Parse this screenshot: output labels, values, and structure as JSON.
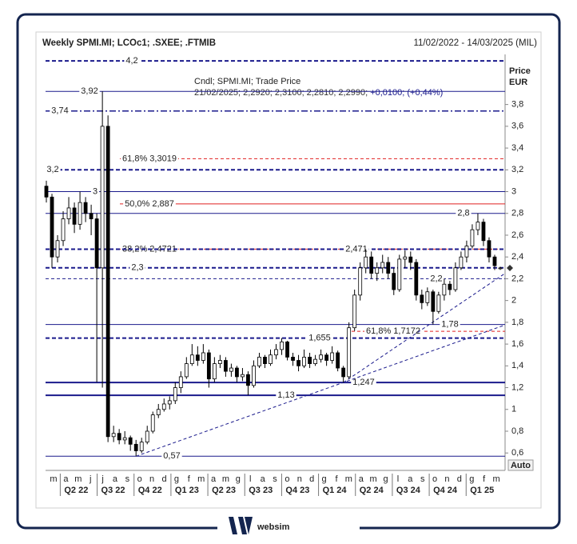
{
  "chart_data": {
    "type": "candlestick",
    "title": "Weekly SPMI.MI; LCOc1; .SXEE; .FTMIB",
    "subtitle": "11/02/2022 - 14/03/2025 (MIL)",
    "y_label_top": "Price",
    "y_label_bottom": "EUR",
    "legend_title": "Cndl; SPMI.MI; Trade Price",
    "legend_values": "21/02/2025; 2,2920; 2,3100; 2,2810; 2,2990;",
    "legend_change": "+0,0100; (+0,44%)",
    "auto_button": "Auto",
    "up_color": "#ffffff",
    "down_color": "#000000",
    "ylim": [
      0.44,
      4.26
    ],
    "yticks": [
      {
        "value": 0.6,
        "label": "0,6"
      },
      {
        "value": 0.8,
        "label": "0,8"
      },
      1,
      {
        "value": 1.2,
        "label": "1,2"
      },
      {
        "value": 1.4,
        "label": "1,4"
      },
      {
        "value": 1.6,
        "label": "1,6"
      },
      {
        "value": 1.8,
        "label": "1,8"
      },
      2,
      {
        "value": 2.2,
        "label": "2,2"
      },
      {
        "value": 2.4,
        "label": "2,4"
      },
      {
        "value": 2.6,
        "label": "2,6"
      },
      {
        "value": 2.8,
        "label": "2,8"
      },
      3,
      {
        "value": 3.2,
        "label": "3,2"
      },
      {
        "value": 3.4,
        "label": "3,4"
      },
      {
        "value": 3.6,
        "label": "3,6"
      },
      {
        "value": 3.8,
        "label": "3,8"
      }
    ],
    "months": [
      "m",
      "a",
      "m",
      "j",
      "j",
      "a",
      "s",
      "o",
      "n",
      "d",
      "g",
      "f",
      "m",
      "a",
      "m",
      "g",
      "l",
      "a",
      "s",
      "o",
      "n",
      "d",
      "g",
      "f",
      "m",
      "a",
      "m",
      "g",
      "l",
      "a",
      "s",
      "o",
      "n",
      "d",
      "g",
      "f",
      "m"
    ],
    "quarters": [
      "Q2 22",
      "Q3 22",
      "Q4 22",
      "Q1 23",
      "Q2 23",
      "Q3 23",
      "Q4 23",
      "Q1 24",
      "Q2 24",
      "Q3 24",
      "Q4 24",
      "Q1 25"
    ],
    "open": [
      3.05,
      2.95,
      2.4,
      2.55,
      2.75,
      2.85,
      2.7,
      2.9,
      2.8,
      2.75,
      2.3,
      3.6,
      0.75,
      0.78,
      0.72,
      0.74,
      0.68,
      0.62,
      0.7,
      0.8,
      0.95,
      1.0,
      1.05,
      1.08,
      1.2,
      1.3,
      1.42,
      1.5,
      1.45,
      1.52,
      1.28,
      1.42,
      1.45,
      1.35,
      1.38,
      1.3,
      1.32,
      1.22,
      1.4,
      1.48,
      1.42,
      1.5,
      1.55,
      1.62,
      1.48,
      1.45,
      1.4,
      1.48,
      1.42,
      1.46,
      1.5,
      1.45,
      1.52,
      1.38,
      1.3,
      1.75,
      2.05,
      2.3,
      2.4,
      2.25,
      2.3,
      2.35,
      2.25,
      2.1,
      2.38,
      2.4,
      2.35,
      2.05,
      1.98,
      2.08,
      1.9,
      2.05,
      2.15,
      2.1,
      2.3,
      2.4,
      2.5,
      2.65,
      2.72,
      2.55,
      2.4,
      2.292
    ],
    "high": [
      3.1,
      2.98,
      2.6,
      2.82,
      2.95,
      2.9,
      3.0,
      2.95,
      2.88,
      2.8,
      3.92,
      3.7,
      0.85,
      0.82,
      0.8,
      0.76,
      0.72,
      0.74,
      0.85,
      0.98,
      1.05,
      1.1,
      1.12,
      1.25,
      1.35,
      1.48,
      1.6,
      1.58,
      1.6,
      1.55,
      1.48,
      1.5,
      1.48,
      1.42,
      1.4,
      1.38,
      1.35,
      1.45,
      1.52,
      1.5,
      1.55,
      1.6,
      1.655,
      1.63,
      1.52,
      1.5,
      1.55,
      1.52,
      1.5,
      1.55,
      1.52,
      1.58,
      1.54,
      1.4,
      1.8,
      2.1,
      2.35,
      2.471,
      2.45,
      2.35,
      2.42,
      2.4,
      2.3,
      2.42,
      2.46,
      2.45,
      2.38,
      2.1,
      2.12,
      2.1,
      2.08,
      2.2,
      2.18,
      2.35,
      2.45,
      2.55,
      2.7,
      2.8,
      2.75,
      2.58,
      2.42,
      2.31
    ],
    "low": [
      2.9,
      2.3,
      2.35,
      2.5,
      2.7,
      2.62,
      2.65,
      2.72,
      2.6,
      1.25,
      1.2,
      0.7,
      0.7,
      0.68,
      0.68,
      0.62,
      0.57,
      0.6,
      0.68,
      0.78,
      0.92,
      0.98,
      1.0,
      1.05,
      1.15,
      1.28,
      1.4,
      1.4,
      1.42,
      1.2,
      1.25,
      1.38,
      1.3,
      1.3,
      1.25,
      1.26,
      1.13,
      1.2,
      1.38,
      1.38,
      1.4,
      1.46,
      1.5,
      1.45,
      1.4,
      1.35,
      1.38,
      1.38,
      1.4,
      1.43,
      1.4,
      1.42,
      1.35,
      1.247,
      1.28,
      1.72,
      2.0,
      2.25,
      2.2,
      2.18,
      2.25,
      2.2,
      2.05,
      2.08,
      2.3,
      2.28,
      2.0,
      1.92,
      1.95,
      1.78,
      1.88,
      2.0,
      2.05,
      2.08,
      2.28,
      2.35,
      2.48,
      2.6,
      2.5,
      2.35,
      2.28,
      2.281
    ],
    "close": [
      2.95,
      2.4,
      2.55,
      2.75,
      2.85,
      2.7,
      2.9,
      2.8,
      2.75,
      2.3,
      3.6,
      0.75,
      0.78,
      0.72,
      0.74,
      0.68,
      0.62,
      0.7,
      0.8,
      0.95,
      1.0,
      1.05,
      1.08,
      1.2,
      1.3,
      1.42,
      1.5,
      1.45,
      1.52,
      1.28,
      1.42,
      1.45,
      1.35,
      1.38,
      1.3,
      1.32,
      1.22,
      1.4,
      1.48,
      1.42,
      1.5,
      1.55,
      1.62,
      1.48,
      1.45,
      1.4,
      1.48,
      1.42,
      1.46,
      1.5,
      1.45,
      1.52,
      1.38,
      1.3,
      1.75,
      2.05,
      2.3,
      2.4,
      2.25,
      2.3,
      2.35,
      2.25,
      2.1,
      2.38,
      2.4,
      2.35,
      2.05,
      1.98,
      2.08,
      1.9,
      2.05,
      2.15,
      2.1,
      2.3,
      2.4,
      2.5,
      2.65,
      2.72,
      2.55,
      2.4,
      2.32,
      2.299
    ],
    "levels": [
      {
        "value": 4.2,
        "label": "4,2",
        "color": "#1a1a8c",
        "style": "bold-dashed"
      },
      {
        "value": 3.92,
        "label": "3,92",
        "color": "#1a1a8c",
        "style": "solid"
      },
      {
        "value": 3.74,
        "label": "3,74",
        "color": "#1a1a8c",
        "style": "dash-dot"
      },
      {
        "value": 3.3019,
        "label": "61,8% 3,3019",
        "color": "#e02020",
        "style": "dashed"
      },
      {
        "value": 3.2,
        "label": "3,2",
        "color": "#1a1a8c",
        "style": "bold-dashed"
      },
      {
        "value": 3,
        "label": "3",
        "color": "#1a1a8c",
        "style": "solid"
      },
      {
        "value": 2.887,
        "label": "50,0% 2,887",
        "color": "#e02020",
        "style": "solid"
      },
      {
        "value": 2.8,
        "label": "2,8",
        "color": "#1a1a8c",
        "style": "solid"
      },
      {
        "value": 2.4721,
        "label": "38,2% 2,4721",
        "color": "#e02020",
        "style": "dashed"
      },
      {
        "value": 2.471,
        "label": "2,471",
        "color": "#1a1a8c",
        "style": "bold-dashed"
      },
      {
        "value": 2.3,
        "label": "2,3",
        "color": "#1a1a8c",
        "style": "bold-dashed"
      },
      {
        "value": 2.2,
        "label": "2,2",
        "color": "#1a1a8c",
        "style": "dashed"
      },
      {
        "value": 1.78,
        "label": "1,78",
        "color": "#1a1a8c",
        "style": "solid"
      },
      {
        "value": 1.7172,
        "label": "61,8% 1,7172",
        "color": "#e02020",
        "style": "dashed"
      },
      {
        "value": 1.655,
        "label": "1,655",
        "color": "#1a1a8c",
        "style": "bold-dashed"
      },
      {
        "value": 1.247,
        "label": "1,247",
        "color": "#1a1a8c",
        "style": "bold-solid"
      },
      {
        "value": 1.13,
        "label": "1,13",
        "color": "#1a1a8c",
        "style": "bold-solid"
      },
      {
        "value": 0.57,
        "label": "0,57",
        "color": "#1a1a8c",
        "style": "solid"
      }
    ],
    "trendlines": [
      {
        "x": [
          16,
          81
        ],
        "y": [
          0.57,
          1.76
        ],
        "color": "#1a1a8c"
      },
      {
        "x": [
          53,
          81
        ],
        "y": [
          1.247,
          2.22
        ],
        "color": "#1a1a8c"
      }
    ]
  },
  "footer": {
    "brand": "websim"
  }
}
